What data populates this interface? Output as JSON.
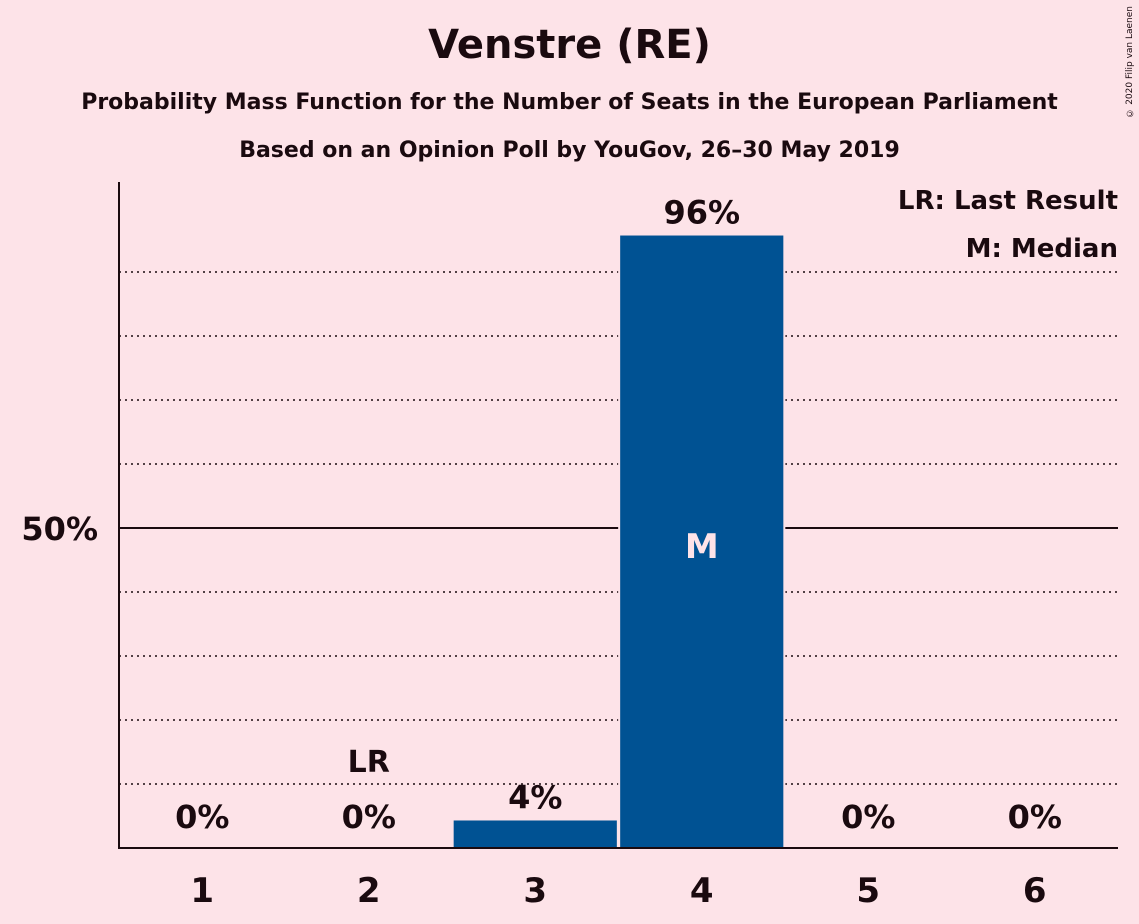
{
  "header": {
    "title": "Venstre (RE)",
    "subtitle1": "Probability Mass Function for the Number of Seats in the European Parliament",
    "subtitle2": "Based on an Opinion Poll by YouGov, 26–30 May 2019"
  },
  "copyright": "© 2020 Filip van Laenen",
  "legend": {
    "lr": "LR: Last Result",
    "m": "M: Median"
  },
  "colors": {
    "background": "#fde3e8",
    "bar": "#005293",
    "text": "#1a0a0f"
  },
  "chart_data": {
    "type": "bar",
    "title": "Venstre (RE)",
    "categories": [
      "1",
      "2",
      "3",
      "4",
      "5",
      "6"
    ],
    "values": [
      0,
      0,
      4.3,
      95.7,
      0,
      0
    ],
    "data_labels": [
      "0%",
      "0%",
      "4%",
      "96%",
      "0%",
      "0%"
    ],
    "ylim": [
      0,
      105
    ],
    "y_tick_label": "50%",
    "y_tick_value": 50,
    "grid": "dotted every 10%",
    "last_result_category": "2",
    "last_result_label": "LR",
    "median_category": "4",
    "median_label": "M",
    "legend_placement": "top-right"
  }
}
